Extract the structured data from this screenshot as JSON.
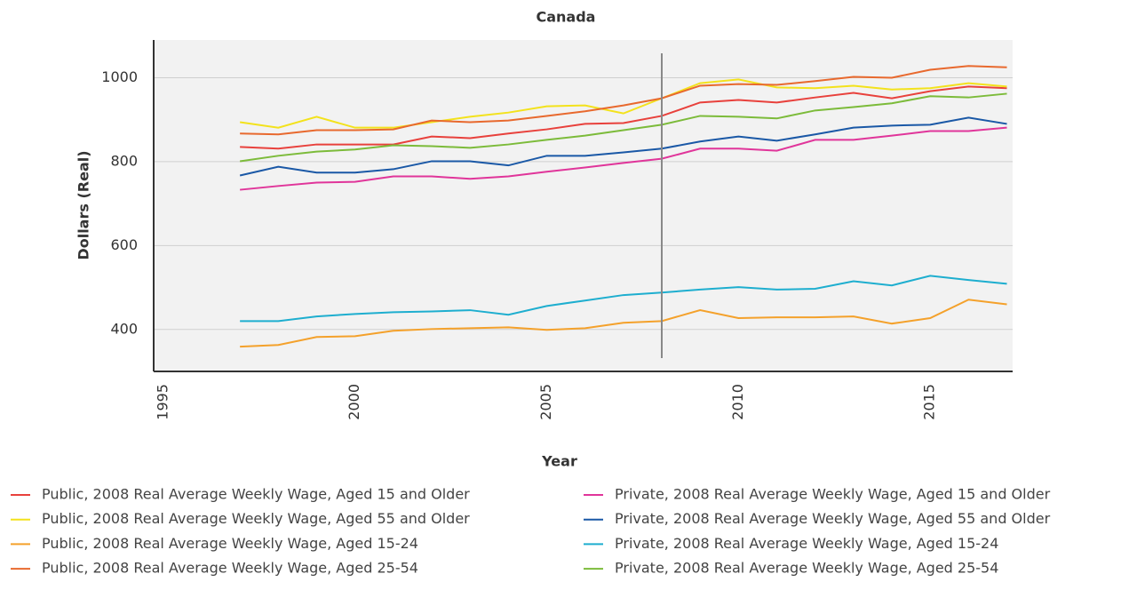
{
  "chart_data": {
    "type": "line",
    "title": "Canada",
    "x_label": "Year",
    "y_label": "Dollars (Real)",
    "x": [
      1997,
      1998,
      1999,
      2000,
      2001,
      2002,
      2003,
      2004,
      2005,
      2006,
      2007,
      2008,
      2009,
      2010,
      2011,
      2012,
      2013,
      2014,
      2015,
      2016,
      2017
    ],
    "xlim": [
      1994.75,
      2017.15
    ],
    "xticks": [
      1995,
      2000,
      2005,
      2010,
      2015
    ],
    "ylim": [
      300,
      1090
    ],
    "yticks": [
      400,
      600,
      800,
      1000
    ],
    "grid": true,
    "vline": 2008,
    "series": [
      {
        "name": "Public, 2008 Real Average Weekly Wage, Aged 15 and Older",
        "color": "#e8413c",
        "values": [
          835,
          831,
          841,
          841,
          841,
          860,
          856,
          867,
          877,
          890,
          892,
          909,
          941,
          947,
          941,
          953,
          964,
          951,
          968,
          979,
          975
        ]
      },
      {
        "name": "Public, 2008 Real Average Weekly Wage, Aged 55 and Older",
        "color": "#f3e21c",
        "values": [
          894,
          881,
          907,
          881,
          881,
          894,
          907,
          917,
          932,
          934,
          915,
          951,
          987,
          996,
          977,
          975,
          981,
          972,
          975,
          987,
          979
        ]
      },
      {
        "name": "Public, 2008 Real Average Weekly Wage, Aged 15-24",
        "color": "#f4a12b",
        "values": [
          359,
          363,
          382,
          384,
          397,
          401,
          403,
          405,
          399,
          403,
          416,
          420,
          446,
          427,
          429,
          429,
          431,
          414,
          427,
          471,
          460
        ]
      },
      {
        "name": "Public, 2008 Real Average Weekly Wage, Aged 25-54",
        "color": "#e8692e",
        "values": [
          867,
          865,
          875,
          875,
          877,
          898,
          894,
          898,
          909,
          920,
          934,
          951,
          981,
          985,
          983,
          992,
          1002,
          1000,
          1019,
          1028,
          1025
        ]
      },
      {
        "name": "Private, 2008 Real Average Weekly Wage, Aged 15 and Older",
        "color": "#e0359a",
        "values": [
          733,
          742,
          750,
          752,
          765,
          765,
          759,
          765,
          776,
          786,
          797,
          807,
          831,
          831,
          826,
          852,
          852,
          862,
          873,
          873,
          881
        ]
      },
      {
        "name": "Private, 2008 Real Average Weekly Wage, Aged 55 and Older",
        "color": "#1a58a6",
        "values": [
          767,
          788,
          774,
          774,
          782,
          801,
          801,
          791,
          814,
          814,
          822,
          831,
          848,
          860,
          850,
          865,
          881,
          886,
          888,
          905,
          890
        ]
      },
      {
        "name": "Private, 2008 Real Average Weekly Wage, Aged 15-24",
        "color": "#1eaecf",
        "values": [
          420,
          420,
          431,
          437,
          441,
          443,
          446,
          435,
          456,
          469,
          482,
          488,
          495,
          501,
          495,
          497,
          515,
          505,
          528,
          518,
          509
        ]
      },
      {
        "name": "Private, 2008 Real Average Weekly Wage, Aged 25-54",
        "color": "#7cbb3a",
        "values": [
          801,
          814,
          824,
          829,
          839,
          837,
          833,
          841,
          852,
          862,
          875,
          888,
          909,
          907,
          903,
          922,
          930,
          939,
          956,
          953,
          962
        ]
      }
    ]
  }
}
